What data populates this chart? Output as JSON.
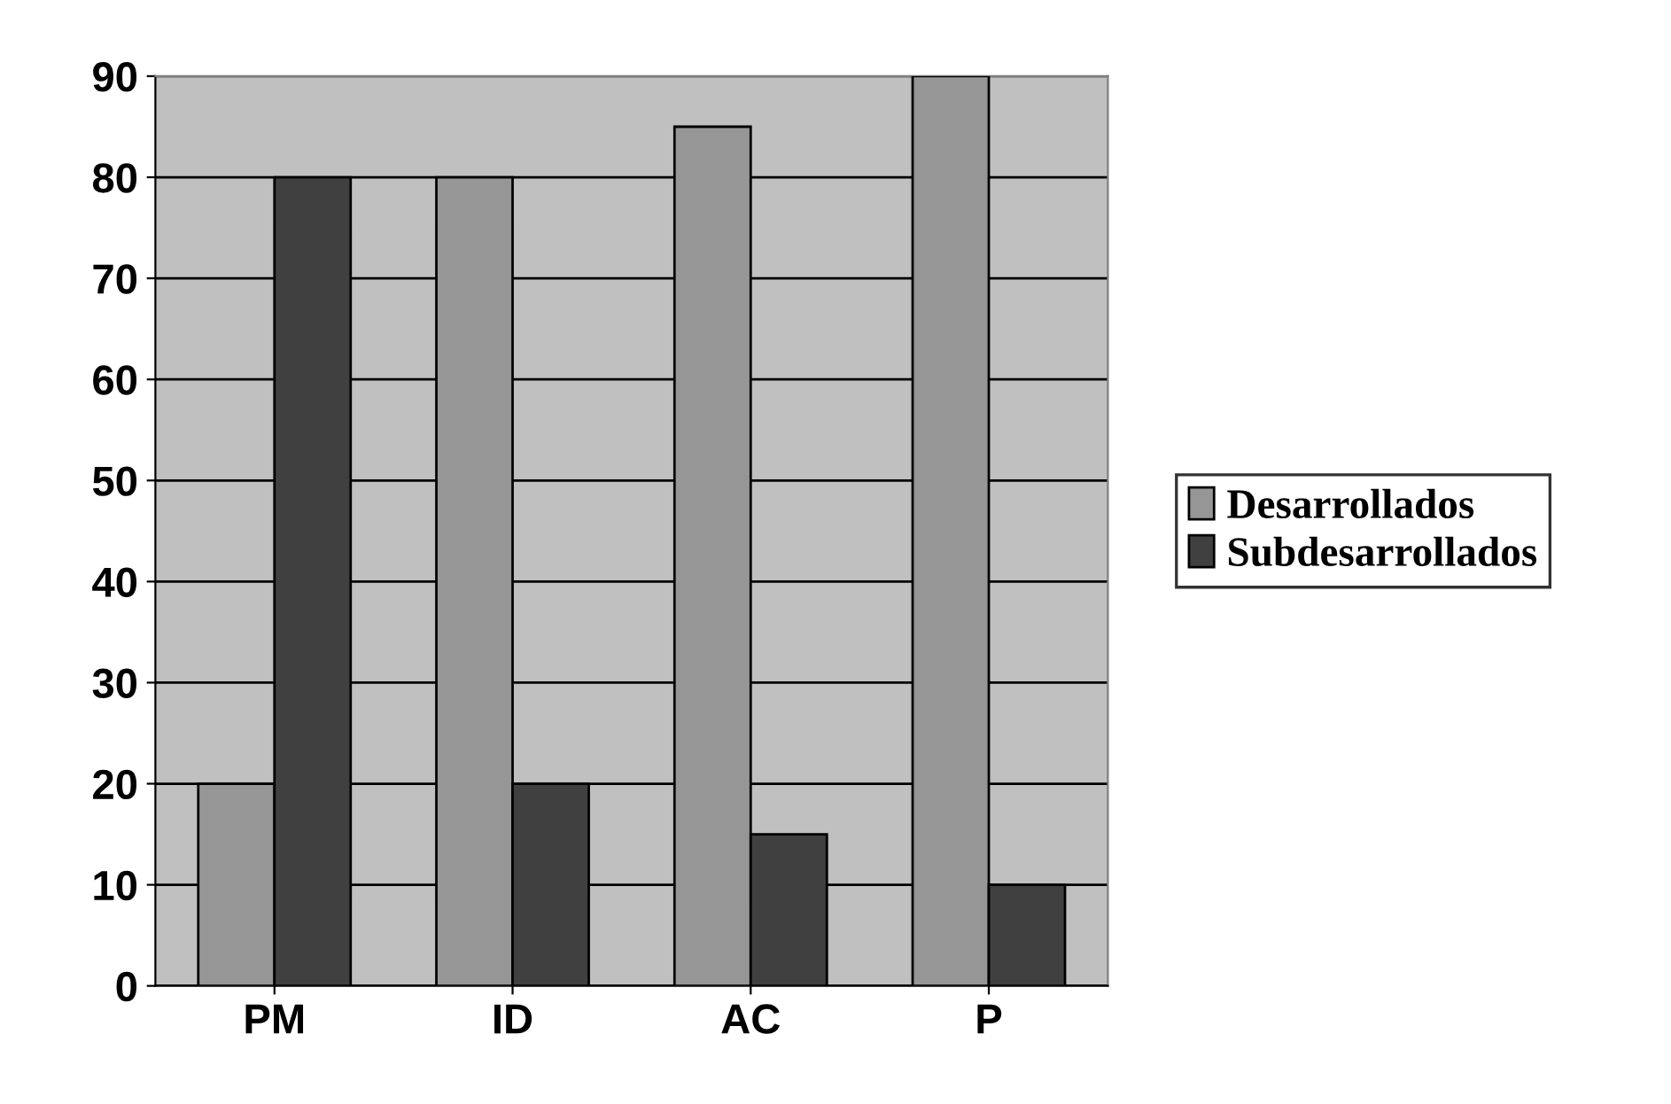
{
  "chart_data": {
    "type": "bar",
    "categories": [
      "PM",
      "ID",
      "AC",
      "P"
    ],
    "series": [
      {
        "name": "Desarrollados",
        "color": "#969696",
        "values": [
          20,
          80,
          85,
          90
        ]
      },
      {
        "name": "Subdesarrollados",
        "color": "#404040",
        "values": [
          80,
          20,
          15,
          10
        ]
      }
    ],
    "ylim": [
      0,
      90
    ],
    "yticks": [
      0,
      10,
      20,
      30,
      40,
      50,
      60,
      70,
      80,
      90
    ],
    "grid": "y",
    "legend": "right"
  }
}
